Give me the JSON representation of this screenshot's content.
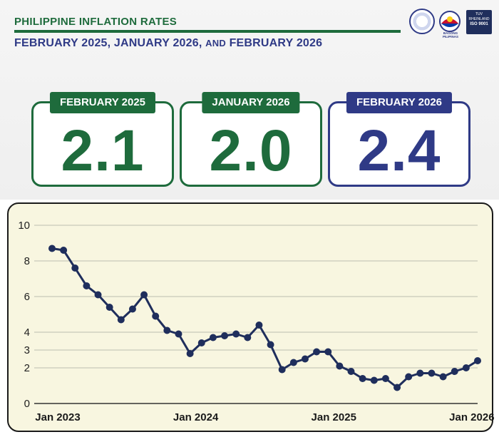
{
  "header": {
    "title": "PHILIPPINE INFLATION RATES",
    "subtitle_part1": "FEBRUARY 2025, JANUARY 2026,",
    "subtitle_and": "AND",
    "subtitle_part2": "FEBRUARY 2026"
  },
  "logos": {
    "bagong_pilipinas_text": "BAGONG PILIPINAS",
    "iso_line1": "TUV RHEINLAND",
    "iso_line2": "ISO 9001"
  },
  "cards": [
    {
      "label": "FEBRUARY 2025",
      "value": "2.1",
      "color": "#1e6b3c"
    },
    {
      "label": "JANUARY 2026",
      "value": "2.0",
      "color": "#1e6b3c"
    },
    {
      "label": "FEBRUARY 2026",
      "value": "2.4",
      "color": "#2f3a86"
    }
  ],
  "chart_data": {
    "type": "line",
    "title": "",
    "xlabel": "",
    "ylabel": "",
    "ylim": [
      0,
      10
    ],
    "yticks": [
      0,
      2,
      3,
      4,
      6,
      8,
      10
    ],
    "x_tick_labels": [
      {
        "label": "Jan 2023",
        "index": 0
      },
      {
        "label": "Jan 2024",
        "index": 12
      },
      {
        "label": "Jan 2025",
        "index": 24
      },
      {
        "label": "Jan 2026",
        "index": 36
      }
    ],
    "grid": true,
    "line_color": "#1f2e5c",
    "series": [
      {
        "name": "",
        "x": [
          "2023-01",
          "2023-02",
          "2023-03",
          "2023-04",
          "2023-05",
          "2023-06",
          "2023-07",
          "2023-08",
          "2023-09",
          "2023-10",
          "2023-11",
          "2023-12",
          "2024-01",
          "2024-02",
          "2024-03",
          "2024-04",
          "2024-05",
          "2024-06",
          "2024-07",
          "2024-08",
          "2024-09",
          "2024-10",
          "2024-11",
          "2024-12",
          "2025-01",
          "2025-02",
          "2025-03",
          "2025-04",
          "2025-05",
          "2025-06",
          "2025-07",
          "2025-08",
          "2025-09",
          "2025-10",
          "2025-11",
          "2025-12",
          "2026-01",
          "2026-02"
        ],
        "values": [
          8.7,
          8.6,
          7.6,
          6.6,
          6.1,
          5.4,
          4.7,
          5.3,
          6.1,
          4.9,
          4.1,
          3.9,
          2.8,
          3.4,
          3.7,
          3.8,
          3.9,
          3.7,
          4.4,
          3.3,
          1.9,
          2.3,
          2.5,
          2.9,
          2.9,
          2.1,
          1.8,
          1.4,
          1.3,
          1.4,
          0.9,
          1.5,
          1.7,
          1.7,
          1.5,
          1.8,
          2.0,
          2.4
        ]
      }
    ]
  }
}
